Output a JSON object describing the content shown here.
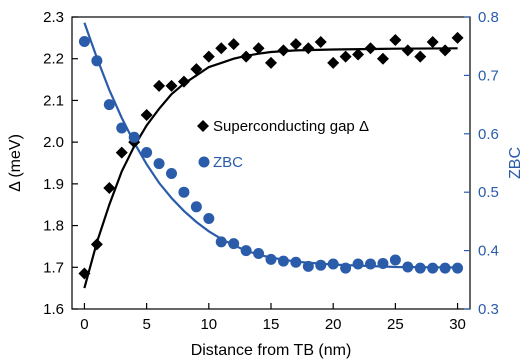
{
  "chart_data": {
    "type": "scatter",
    "xlabel": "Distance from TB (nm)",
    "ylabel_left": "Δ (meV)",
    "ylabel_right": "ZBC",
    "xlim": [
      -1,
      31
    ],
    "ylim_left": [
      1.6,
      2.3
    ],
    "ylim_right": [
      0.3,
      0.8
    ],
    "x_ticks": [
      0,
      5,
      10,
      15,
      20,
      25,
      30
    ],
    "y_ticks_left": [
      1.6,
      1.7,
      1.8,
      1.9,
      2.0,
      2.1,
      2.2,
      2.3
    ],
    "y_ticks_right": [
      0.3,
      0.4,
      0.5,
      0.6,
      0.7,
      0.8
    ],
    "colors": {
      "gap": "#000000",
      "zbc": "#2a5caa"
    },
    "series": [
      {
        "name": "Superconducting gap Δ",
        "axis": "left",
        "marker": "diamond",
        "points": [
          [
            0,
            1.685
          ],
          [
            1,
            1.755
          ],
          [
            2,
            1.89
          ],
          [
            3,
            1.975
          ],
          [
            4,
            2.0
          ],
          [
            5,
            2.065
          ],
          [
            6,
            2.135
          ],
          [
            7,
            2.135
          ],
          [
            8,
            2.145
          ],
          [
            9,
            2.175
          ],
          [
            10,
            2.205
          ],
          [
            11,
            2.225
          ],
          [
            12,
            2.235
          ],
          [
            13,
            2.205
          ],
          [
            14,
            2.225
          ],
          [
            15,
            2.19
          ],
          [
            16,
            2.22
          ],
          [
            17,
            2.235
          ],
          [
            18,
            2.225
          ],
          [
            19,
            2.24
          ],
          [
            20,
            2.19
          ],
          [
            21,
            2.205
          ],
          [
            22,
            2.21
          ],
          [
            23,
            2.225
          ],
          [
            24,
            2.2
          ],
          [
            25,
            2.245
          ],
          [
            26,
            2.22
          ],
          [
            27,
            2.205
          ],
          [
            28,
            2.24
          ],
          [
            29,
            2.22
          ],
          [
            30,
            2.25
          ]
        ],
        "fit": [
          [
            0,
            1.65
          ],
          [
            1,
            1.76
          ],
          [
            2,
            1.85
          ],
          [
            3,
            1.93
          ],
          [
            4,
            1.99
          ],
          [
            5,
            2.04
          ],
          [
            6,
            2.08
          ],
          [
            7,
            2.115
          ],
          [
            8,
            2.14
          ],
          [
            9,
            2.16
          ],
          [
            10,
            2.18
          ],
          [
            11,
            2.19
          ],
          [
            12,
            2.2
          ],
          [
            13,
            2.207
          ],
          [
            14,
            2.212
          ],
          [
            15,
            2.216
          ],
          [
            17,
            2.22
          ],
          [
            20,
            2.222
          ],
          [
            25,
            2.224
          ],
          [
            30,
            2.225
          ]
        ]
      },
      {
        "name": "ZBC",
        "axis": "right",
        "marker": "circle",
        "points": [
          [
            0,
            0.758
          ],
          [
            1,
            0.725
          ],
          [
            2,
            0.65
          ],
          [
            3,
            0.61
          ],
          [
            4,
            0.594
          ],
          [
            5,
            0.568
          ],
          [
            6,
            0.549
          ],
          [
            7,
            0.532
          ],
          [
            8,
            0.5
          ],
          [
            9,
            0.475
          ],
          [
            10,
            0.455
          ],
          [
            11,
            0.415
          ],
          [
            12,
            0.412
          ],
          [
            13,
            0.4
          ],
          [
            14,
            0.395
          ],
          [
            15,
            0.385
          ],
          [
            16,
            0.382
          ],
          [
            17,
            0.38
          ],
          [
            18,
            0.373
          ],
          [
            19,
            0.375
          ],
          [
            20,
            0.377
          ],
          [
            21,
            0.37
          ],
          [
            22,
            0.377
          ],
          [
            23,
            0.377
          ],
          [
            24,
            0.378
          ],
          [
            25,
            0.384
          ],
          [
            26,
            0.372
          ],
          [
            27,
            0.37
          ],
          [
            28,
            0.37
          ],
          [
            29,
            0.37
          ],
          [
            30,
            0.37
          ]
        ],
        "fit": [
          [
            0,
            0.79
          ],
          [
            1,
            0.73
          ],
          [
            2,
            0.675
          ],
          [
            3,
            0.627
          ],
          [
            4,
            0.585
          ],
          [
            5,
            0.548
          ],
          [
            6,
            0.516
          ],
          [
            7,
            0.49
          ],
          [
            8,
            0.468
          ],
          [
            9,
            0.449
          ],
          [
            10,
            0.433
          ],
          [
            11,
            0.42
          ],
          [
            12,
            0.409
          ],
          [
            13,
            0.4
          ],
          [
            14,
            0.393
          ],
          [
            15,
            0.388
          ],
          [
            17,
            0.381
          ],
          [
            20,
            0.376
          ],
          [
            25,
            0.372
          ],
          [
            30,
            0.371
          ]
        ]
      }
    ],
    "legend": [
      {
        "label": "Superconducting gap Δ",
        "marker": "diamond"
      },
      {
        "label": "ZBC",
        "marker": "circle"
      }
    ],
    "grid": false
  }
}
